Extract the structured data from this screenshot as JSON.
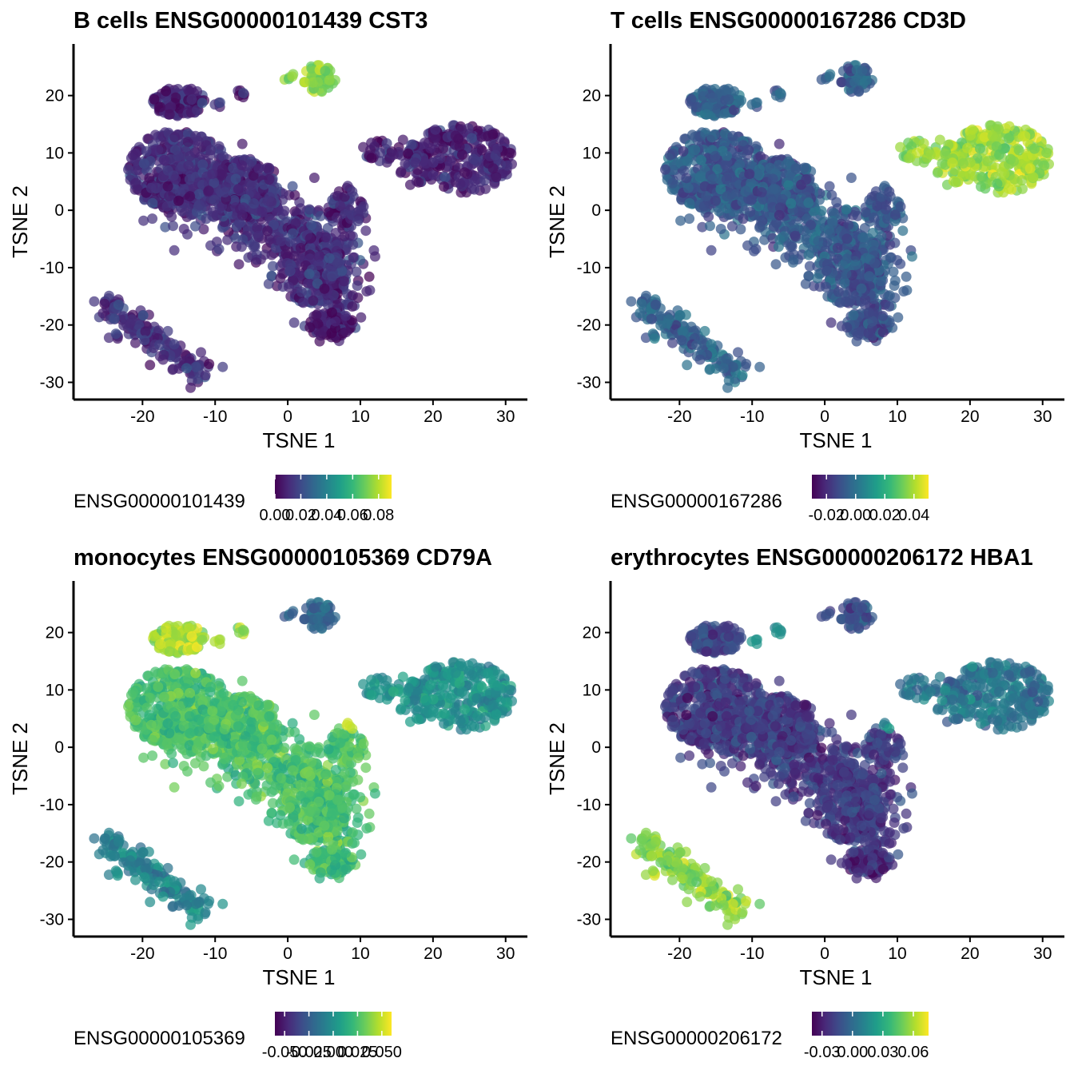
{
  "chart_data": [
    {
      "type": "scatter",
      "title": "B cells ENSG00000101439 CST3",
      "xlabel": "TSNE 1",
      "ylabel": "TSNE 2",
      "xlim": [
        -29.5,
        33
      ],
      "ylim": [
        -33,
        29
      ],
      "xticks": [
        -20,
        -10,
        0,
        10,
        20,
        30
      ],
      "yticks": [
        -30,
        -20,
        -10,
        0,
        10,
        20
      ],
      "xtick_labels": [
        "-20",
        "-10",
        "0",
        "10",
        "20",
        "30"
      ],
      "ytick_labels": [
        "-30",
        "-20",
        "-10",
        "0",
        "10",
        "20"
      ],
      "colorscale": "viridis",
      "grid": false,
      "legend": {
        "title": "ENSG00000101439",
        "position": "bottom",
        "range": [
          0.0,
          0.09
        ],
        "tick_values": [
          0.0,
          0.02,
          0.04,
          0.06,
          0.08
        ],
        "tick_labels": [
          "0.00",
          "0.02",
          "0.04",
          "0.06",
          "0.08"
        ]
      },
      "expression_by_cluster": {
        "main": 0.012,
        "left-top": 0.01,
        "small-center": 0.01,
        "top-small": 0.075,
        "right": 0.008,
        "bottom-left": 0.012,
        "lower-right": 0.006
      }
    },
    {
      "type": "scatter",
      "title": "T cells ENSG00000167286 CD3D",
      "xlabel": "TSNE 1",
      "ylabel": "TSNE 2",
      "xlim": [
        -29.5,
        33
      ],
      "ylim": [
        -33,
        29
      ],
      "xticks": [
        -20,
        -10,
        0,
        10,
        20,
        30
      ],
      "yticks": [
        -30,
        -20,
        -10,
        0,
        10,
        20
      ],
      "xtick_labels": [
        "-20",
        "-10",
        "0",
        "10",
        "20",
        "30"
      ],
      "ytick_labels": [
        "-30",
        "-20",
        "-10",
        "0",
        "10",
        "20"
      ],
      "colorscale": "viridis",
      "grid": false,
      "legend": {
        "title": "ENSG00000167286",
        "position": "bottom",
        "range": [
          -0.03,
          0.05
        ],
        "tick_values": [
          -0.02,
          0.0,
          0.02,
          0.04
        ],
        "tick_labels": [
          "-0.02",
          "0.00",
          "0.02",
          "0.04"
        ]
      },
      "expression_by_cluster": {
        "main": -0.008,
        "left-top": -0.006,
        "small-center": -0.008,
        "top-small": -0.006,
        "right": 0.038,
        "bottom-left": -0.004,
        "lower-right": -0.01
      }
    },
    {
      "type": "scatter",
      "title": "monocytes ENSG00000105369 CD79A",
      "xlabel": "TSNE 1",
      "ylabel": "TSNE 2",
      "xlim": [
        -29.5,
        33
      ],
      "ylim": [
        -33,
        29
      ],
      "xticks": [
        -20,
        -10,
        0,
        10,
        20,
        30
      ],
      "yticks": [
        -30,
        -20,
        -10,
        0,
        10,
        20
      ],
      "xtick_labels": [
        "-20",
        "-10",
        "0",
        "10",
        "20",
        "30"
      ],
      "ytick_labels": [
        "-30",
        "-20",
        "-10",
        "0",
        "10",
        "20"
      ],
      "colorscale": "viridis",
      "grid": false,
      "legend": {
        "title": "ENSG00000105369",
        "position": "bottom",
        "range": [
          -0.06,
          0.06
        ],
        "tick_values": [
          -0.05,
          -0.025,
          0.0,
          0.025,
          0.05
        ],
        "tick_labels": [
          "-0.050",
          "-0.025",
          "0.000",
          "0.025",
          "0.050"
        ]
      },
      "expression_by_cluster": {
        "main": 0.025,
        "left-top": 0.045,
        "small-center": 0.048,
        "top-small": -0.02,
        "right": 0.0,
        "bottom-left": -0.005,
        "lower-right": 0.02
      }
    },
    {
      "type": "scatter",
      "title": "erythrocytes ENSG00000206172 HBA1",
      "xlabel": "TSNE 1",
      "ylabel": "TSNE 2",
      "xlim": [
        -29.5,
        33
      ],
      "ylim": [
        -33,
        29
      ],
      "xticks": [
        -20,
        -10,
        0,
        10,
        20,
        30
      ],
      "yticks": [
        -30,
        -20,
        -10,
        0,
        10,
        20
      ],
      "xtick_labels": [
        "-20",
        "-10",
        "0",
        "10",
        "20",
        "30"
      ],
      "ytick_labels": [
        "-30",
        "-20",
        "-10",
        "0",
        "10",
        "20"
      ],
      "colorscale": "viridis",
      "grid": false,
      "legend": {
        "title": "ENSG00000206172",
        "position": "bottom",
        "range": [
          -0.04,
          0.075
        ],
        "tick_values": [
          -0.03,
          0.0,
          0.03,
          0.06
        ],
        "tick_labels": [
          "-0.03",
          "0.00",
          "0.03",
          "0.06"
        ]
      },
      "expression_by_cluster": {
        "main": -0.02,
        "left-top": -0.015,
        "small-center": 0.02,
        "top-small": -0.012,
        "right": 0.005,
        "bottom-left": 0.055,
        "lower-right": -0.025
      }
    }
  ]
}
